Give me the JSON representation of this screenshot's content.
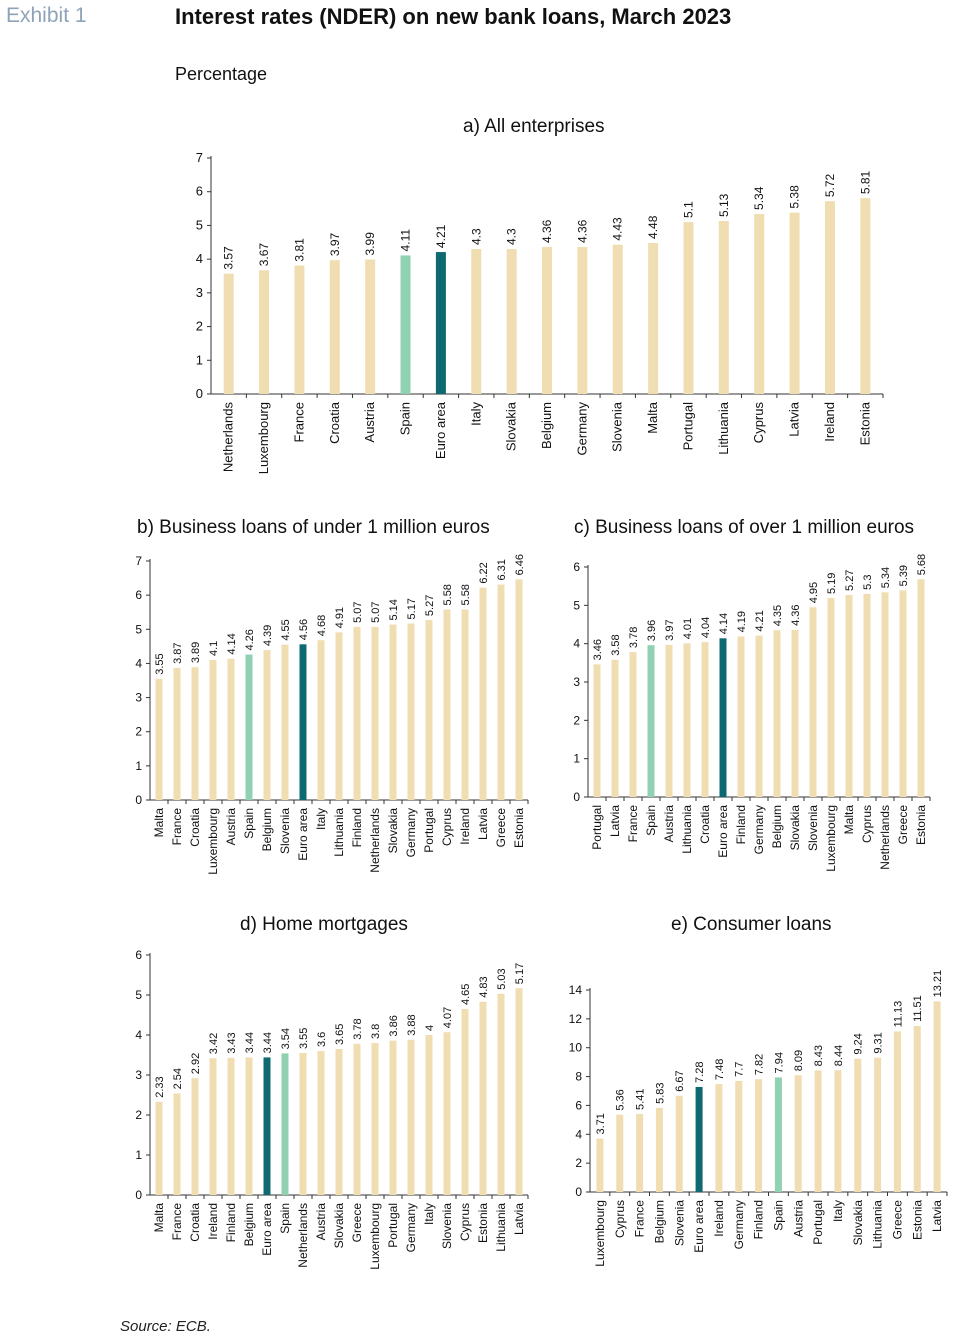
{
  "header": {
    "exhibit": "Exhibit 1",
    "title": "Interest rates (NDER) on new bank loans, March 2023",
    "subtitle": "Percentage"
  },
  "footer": {
    "source": "Source: ECB."
  },
  "colors": {
    "bar": "#f0deb2",
    "spain": "#8fd1b2",
    "euro_area": "#0e6a70"
  },
  "chart_data": [
    {
      "type": "bar",
      "title": "a) All enterprises",
      "ylim": [
        0,
        7
      ],
      "yticks": [
        0,
        1,
        2,
        3,
        4,
        5,
        6,
        7
      ],
      "categories": [
        "Netherlands",
        "Luxembourg",
        "France",
        "Croatia",
        "Austria",
        "Spain",
        "Euro area",
        "Italy",
        "Slovakia",
        "Belgium",
        "Germany",
        "Slovenia",
        "Malta",
        "Portugal",
        "Lithuania",
        "Cyprus",
        "Latvia",
        "Ireland",
        "Estonia"
      ],
      "values": [
        3.57,
        3.67,
        3.81,
        3.97,
        3.99,
        4.11,
        4.21,
        4.3,
        4.3,
        4.36,
        4.36,
        4.43,
        4.48,
        5.1,
        5.13,
        5.34,
        5.38,
        5.72,
        5.81
      ]
    },
    {
      "type": "bar",
      "title": "b) Business loans of under 1 million euros",
      "ylim": [
        0,
        7
      ],
      "yticks": [
        0,
        1,
        2,
        3,
        4,
        5,
        6,
        7
      ],
      "categories": [
        "Malta",
        "France",
        "Croatia",
        "Luxembourg",
        "Austria",
        "Spain",
        "Belgium",
        "Slovenia",
        "Euro area",
        "Italy",
        "Lithuania",
        "Finland",
        "Netherlands",
        "Slovakia",
        "Germany",
        "Portugal",
        "Cyprus",
        "Ireland",
        "Latvia",
        "Greece",
        "Estonia"
      ],
      "values": [
        3.55,
        3.87,
        3.89,
        4.1,
        4.14,
        4.26,
        4.39,
        4.55,
        4.56,
        4.68,
        4.91,
        5.07,
        5.07,
        5.14,
        5.17,
        5.27,
        5.58,
        5.58,
        6.22,
        6.31,
        6.46
      ]
    },
    {
      "type": "bar",
      "title": "c) Business loans of over 1 million euros",
      "ylim": [
        0,
        6
      ],
      "yticks": [
        0,
        1,
        2,
        3,
        4,
        5,
        6
      ],
      "categories": [
        "Portugal",
        "Latvia",
        "France",
        "Spain",
        "Austria",
        "Lithuania",
        "Croatia",
        "Euro area",
        "Finland",
        "Germany",
        "Belgium",
        "Slovakia",
        "Slovenia",
        "Luxembourg",
        "Malta",
        "Cyprus",
        "Netherlands",
        "Greece",
        "Estonia"
      ],
      "values": [
        3.46,
        3.58,
        3.78,
        3.96,
        3.97,
        4.01,
        4.04,
        4.14,
        4.19,
        4.21,
        4.35,
        4.36,
        4.95,
        5.19,
        5.27,
        5.3,
        5.34,
        5.39,
        5.68
      ]
    },
    {
      "type": "bar",
      "title": "d) Home mortgages",
      "ylim": [
        0,
        6
      ],
      "yticks": [
        0,
        1,
        2,
        3,
        4,
        5,
        6
      ],
      "categories": [
        "Malta",
        "France",
        "Croatia",
        "Ireland",
        "Finland",
        "Belgium",
        "Euro area",
        "Spain",
        "Netherlands",
        "Austria",
        "Slovakia",
        "Greece",
        "Luxembourg",
        "Portugal",
        "Germany",
        "Italy",
        "Slovenia",
        "Cyprus",
        "Estonia",
        "Lithuania",
        "Latvia"
      ],
      "values": [
        2.33,
        2.54,
        2.92,
        3.42,
        3.43,
        3.44,
        3.44,
        3.54,
        3.55,
        3.6,
        3.65,
        3.78,
        3.8,
        3.86,
        3.88,
        4,
        4.07,
        4.65,
        4.83,
        5.03,
        5.17
      ]
    },
    {
      "type": "bar",
      "title": "e) Consumer loans",
      "ylim": [
        0,
        14
      ],
      "yticks": [
        0,
        2,
        4,
        6,
        8,
        10,
        12,
        14
      ],
      "categories": [
        "Luxembourg",
        "Cyprus",
        "France",
        "Belgium",
        "Slovenia",
        "Euro area",
        "Ireland",
        "Germany",
        "Finland",
        "Spain",
        "Austria",
        "Portugal",
        "Italy",
        "Slovakia",
        "Lithuania",
        "Greece",
        "Estonia",
        "Latvia"
      ],
      "values": [
        3.71,
        5.36,
        5.41,
        5.83,
        6.67,
        7.28,
        7.48,
        7.7,
        7.82,
        7.94,
        8.09,
        8.43,
        8.44,
        9.24,
        9.31,
        11.13,
        11.51,
        13.21
      ]
    }
  ]
}
